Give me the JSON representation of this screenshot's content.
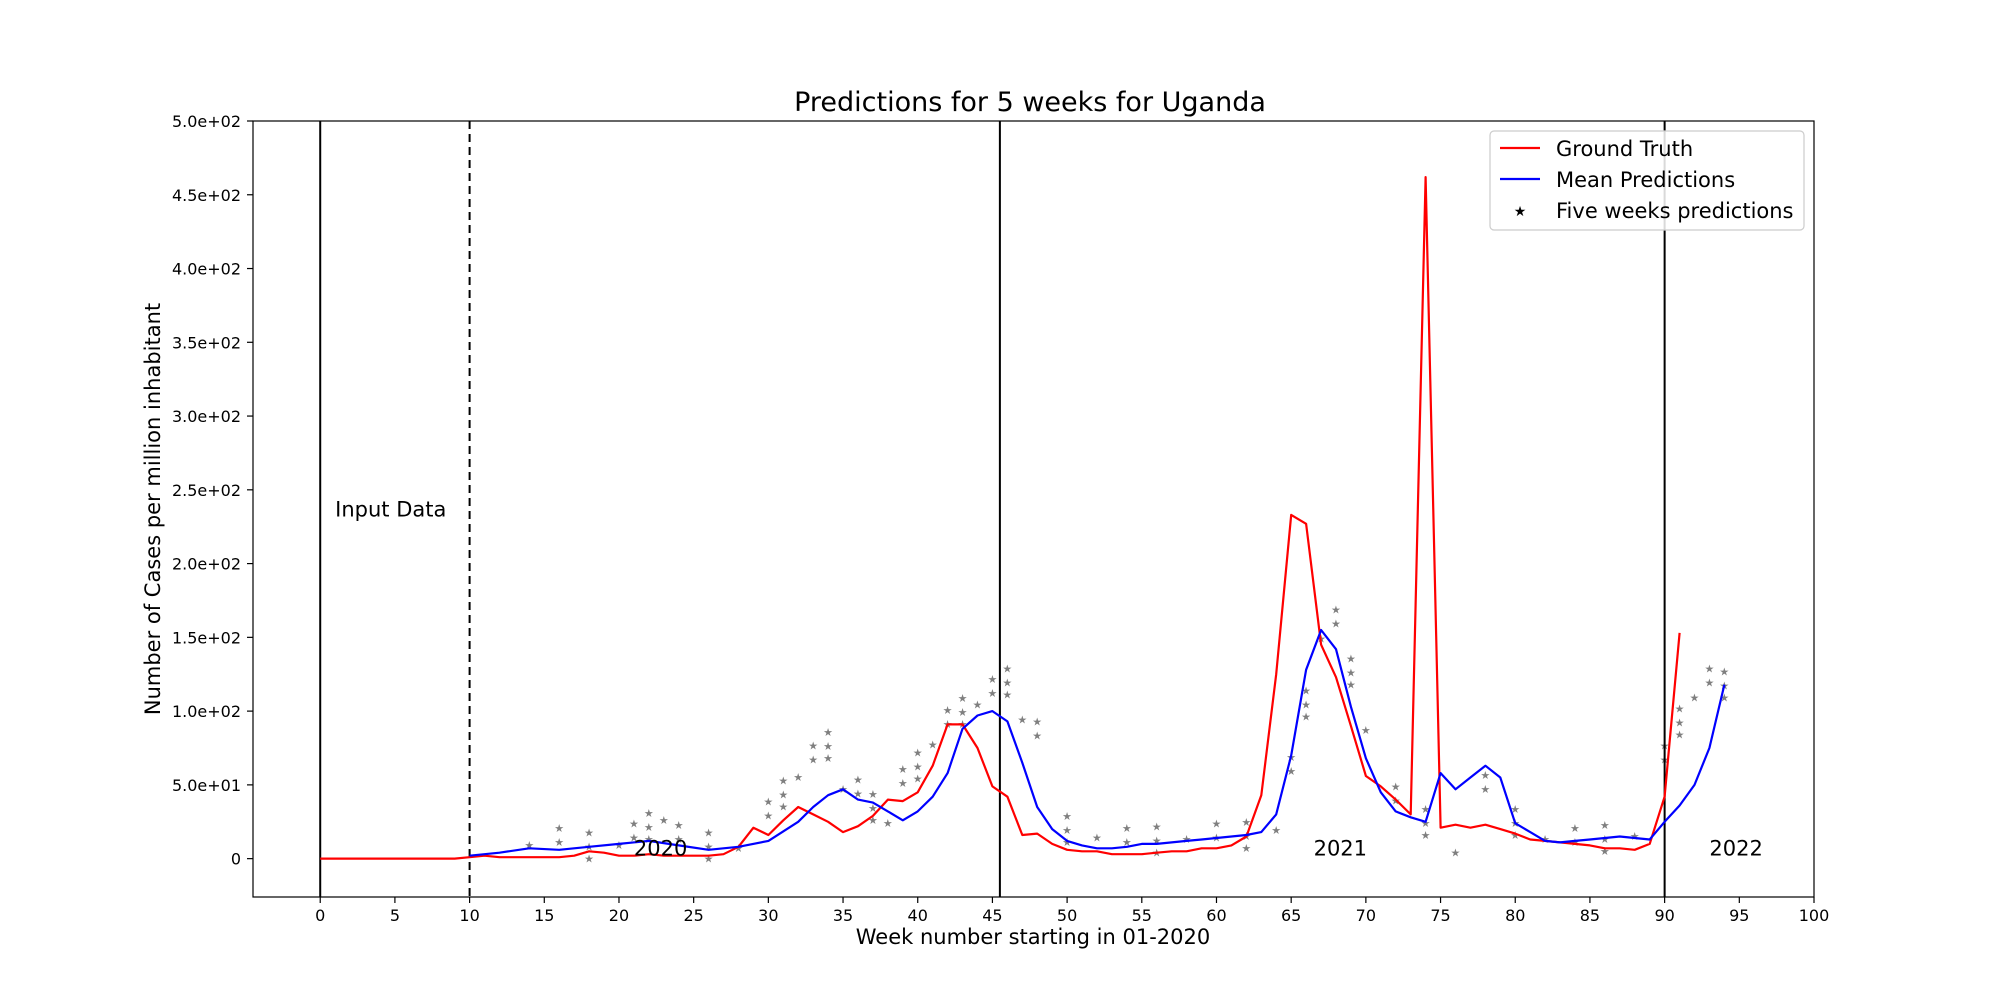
{
  "chart_data": {
    "type": "line",
    "title": "Predictions for 5 weeks for Uganda",
    "xlabel": "Week number starting in 01-2020",
    "ylabel": "Number of Cases per million inhabitant",
    "xlim": [
      -4.5,
      100
    ],
    "ylim": [
      -26,
      500
    ],
    "x_ticks": [
      0,
      5,
      10,
      15,
      20,
      25,
      30,
      35,
      40,
      45,
      50,
      55,
      60,
      65,
      70,
      75,
      80,
      85,
      90,
      95,
      100
    ],
    "y_ticks": [
      {
        "value": 0,
        "label": "0"
      },
      {
        "value": 50,
        "label": "5.0e+01"
      },
      {
        "value": 100,
        "label": "1.0e+02"
      },
      {
        "value": 150,
        "label": "1.5e+02"
      },
      {
        "value": 200,
        "label": "2.0e+02"
      },
      {
        "value": 250,
        "label": "2.5e+02"
      },
      {
        "value": 300,
        "label": "3.0e+02"
      },
      {
        "value": 350,
        "label": "3.5e+02"
      },
      {
        "value": 400,
        "label": "4.0e+02"
      },
      {
        "value": 450,
        "label": "4.5e+02"
      },
      {
        "value": 500,
        "label": "5.0e+02"
      }
    ],
    "grid": false,
    "legend_position": "top-right",
    "vertical_lines": [
      {
        "x": 0,
        "style": "solid"
      },
      {
        "x": 10,
        "style": "dashed"
      },
      {
        "x": 45.5,
        "style": "solid"
      },
      {
        "x": 90,
        "style": "solid"
      }
    ],
    "annotations": [
      {
        "text": "Input Data",
        "x": 1,
        "y": 232
      },
      {
        "text": "2020",
        "x": 21,
        "y": 2
      },
      {
        "text": "2021",
        "x": 66.5,
        "y": 2
      },
      {
        "text": "2022",
        "x": 93,
        "y": 2
      }
    ],
    "series": [
      {
        "name": "Ground Truth",
        "color": "#ff0000",
        "kind": "line",
        "points": [
          [
            0,
            0
          ],
          [
            1,
            0
          ],
          [
            2,
            0
          ],
          [
            3,
            0
          ],
          [
            4,
            0
          ],
          [
            5,
            0
          ],
          [
            6,
            0
          ],
          [
            7,
            0
          ],
          [
            8,
            0
          ],
          [
            9,
            0
          ],
          [
            10,
            1
          ],
          [
            11,
            2
          ],
          [
            12,
            1
          ],
          [
            13,
            1
          ],
          [
            14,
            1
          ],
          [
            15,
            1
          ],
          [
            16,
            1
          ],
          [
            17,
            2
          ],
          [
            18,
            5
          ],
          [
            19,
            4
          ],
          [
            20,
            2
          ],
          [
            21,
            2
          ],
          [
            22,
            3
          ],
          [
            23,
            2
          ],
          [
            24,
            2
          ],
          [
            25,
            2
          ],
          [
            26,
            2
          ],
          [
            27,
            3
          ],
          [
            28,
            8
          ],
          [
            29,
            21
          ],
          [
            30,
            16
          ],
          [
            31,
            26
          ],
          [
            32,
            35
          ],
          [
            33,
            30
          ],
          [
            34,
            25
          ],
          [
            35,
            18
          ],
          [
            36,
            22
          ],
          [
            37,
            29
          ],
          [
            38,
            40
          ],
          [
            39,
            39
          ],
          [
            40,
            45
          ],
          [
            41,
            63
          ],
          [
            42,
            91
          ],
          [
            43,
            91
          ],
          [
            44,
            75
          ],
          [
            45,
            49
          ],
          [
            46,
            42
          ],
          [
            47,
            16
          ],
          [
            48,
            17
          ],
          [
            49,
            10
          ],
          [
            50,
            6
          ],
          [
            51,
            5
          ],
          [
            52,
            5
          ],
          [
            53,
            3
          ],
          [
            54,
            3
          ],
          [
            55,
            3
          ],
          [
            56,
            4
          ],
          [
            57,
            5
          ],
          [
            58,
            5
          ],
          [
            59,
            7
          ],
          [
            60,
            7
          ],
          [
            61,
            9
          ],
          [
            62,
            15
          ],
          [
            63,
            43
          ],
          [
            64,
            125
          ],
          [
            65,
            233
          ],
          [
            66,
            227
          ],
          [
            67,
            145
          ],
          [
            68,
            123
          ],
          [
            69,
            90
          ],
          [
            70,
            56
          ],
          [
            71,
            49
          ],
          [
            72,
            40
          ],
          [
            73,
            30
          ],
          [
            74,
            462
          ],
          [
            75,
            21
          ],
          [
            76,
            23
          ],
          [
            77,
            21
          ],
          [
            78,
            23
          ],
          [
            79,
            20
          ],
          [
            80,
            17
          ],
          [
            81,
            13
          ],
          [
            82,
            12
          ],
          [
            83,
            11
          ],
          [
            84,
            10
          ],
          [
            85,
            9
          ],
          [
            86,
            7
          ],
          [
            87,
            7
          ],
          [
            88,
            6
          ],
          [
            89,
            10
          ],
          [
            90,
            42
          ],
          [
            91,
            153
          ]
        ]
      },
      {
        "name": "Mean Predictions",
        "color": "#0000ff",
        "kind": "line",
        "points": [
          [
            10,
            2
          ],
          [
            12,
            4
          ],
          [
            14,
            7
          ],
          [
            16,
            6
          ],
          [
            18,
            8
          ],
          [
            20,
            10
          ],
          [
            22,
            12
          ],
          [
            24,
            9
          ],
          [
            26,
            6
          ],
          [
            28,
            8
          ],
          [
            30,
            12
          ],
          [
            32,
            25
          ],
          [
            33,
            35
          ],
          [
            34,
            43
          ],
          [
            35,
            47
          ],
          [
            36,
            40
          ],
          [
            37,
            38
          ],
          [
            38,
            32
          ],
          [
            39,
            26
          ],
          [
            40,
            32
          ],
          [
            41,
            42
          ],
          [
            42,
            58
          ],
          [
            43,
            88
          ],
          [
            44,
            97
          ],
          [
            45,
            100
          ],
          [
            46,
            93
          ],
          [
            47,
            65
          ],
          [
            48,
            35
          ],
          [
            49,
            20
          ],
          [
            50,
            12
          ],
          [
            51,
            9
          ],
          [
            52,
            7
          ],
          [
            53,
            7
          ],
          [
            54,
            8
          ],
          [
            55,
            10
          ],
          [
            56,
            10
          ],
          [
            57,
            11
          ],
          [
            58,
            12
          ],
          [
            59,
            13
          ],
          [
            60,
            14
          ],
          [
            62,
            16
          ],
          [
            63,
            18
          ],
          [
            64,
            30
          ],
          [
            65,
            70
          ],
          [
            66,
            128
          ],
          [
            67,
            155
          ],
          [
            68,
            142
          ],
          [
            69,
            103
          ],
          [
            70,
            68
          ],
          [
            71,
            45
          ],
          [
            72,
            32
          ],
          [
            73,
            28
          ],
          [
            74,
            25
          ],
          [
            75,
            58
          ],
          [
            76,
            47
          ],
          [
            77,
            55
          ],
          [
            78,
            63
          ],
          [
            79,
            55
          ],
          [
            80,
            24
          ],
          [
            81,
            18
          ],
          [
            82,
            12
          ],
          [
            83,
            11
          ],
          [
            84,
            12
          ],
          [
            85,
            13
          ],
          [
            86,
            14
          ],
          [
            87,
            15
          ],
          [
            88,
            14
          ],
          [
            89,
            13
          ],
          [
            90,
            25
          ],
          [
            91,
            36
          ],
          [
            92,
            50
          ],
          [
            93,
            75
          ],
          [
            94,
            118
          ]
        ]
      },
      {
        "name": "Five weeks predictions",
        "color": "#87ceeb",
        "kind": "markers",
        "points": [
          [
            14,
            10
          ],
          [
            16,
            12
          ],
          [
            18,
            9
          ],
          [
            20,
            10
          ],
          [
            21,
            15
          ],
          [
            22,
            22
          ],
          [
            23,
            27
          ],
          [
            24,
            14
          ],
          [
            26,
            9
          ],
          [
            28,
            8
          ],
          [
            30,
            30
          ],
          [
            31,
            44
          ],
          [
            32,
            56
          ],
          [
            33,
            68
          ],
          [
            34,
            77
          ],
          [
            35,
            48
          ],
          [
            36,
            45
          ],
          [
            37,
            35
          ],
          [
            38,
            25
          ],
          [
            39,
            52
          ],
          [
            40,
            63
          ],
          [
            41,
            78
          ],
          [
            42,
            92
          ],
          [
            43,
            100
          ],
          [
            44,
            105
          ],
          [
            45,
            113
          ],
          [
            46,
            120
          ],
          [
            47,
            95
          ],
          [
            48,
            84
          ],
          [
            50,
            20
          ],
          [
            52,
            15
          ],
          [
            54,
            12
          ],
          [
            56,
            13
          ],
          [
            58,
            14
          ],
          [
            60,
            15
          ],
          [
            62,
            16
          ],
          [
            64,
            20
          ],
          [
            65,
            60
          ],
          [
            66,
            105
          ],
          [
            67,
            150
          ],
          [
            68,
            160
          ],
          [
            69,
            127
          ],
          [
            70,
            88
          ],
          [
            72,
            40
          ],
          [
            74,
            25
          ],
          [
            76,
            5
          ],
          [
            78,
            48
          ],
          [
            80,
            25
          ],
          [
            82,
            14
          ],
          [
            84,
            12
          ],
          [
            86,
            14
          ],
          [
            88,
            16
          ],
          [
            90,
            68
          ],
          [
            91,
            93
          ],
          [
            92,
            110
          ],
          [
            93,
            120
          ],
          [
            94,
            118
          ]
        ]
      }
    ],
    "scatter_colors": [
      "#d62728",
      "#ff7f0e",
      "#2ca02c",
      "#e377c2",
      "#bcbd22",
      "#8c564b",
      "#17becf",
      "#9467bd"
    ]
  }
}
